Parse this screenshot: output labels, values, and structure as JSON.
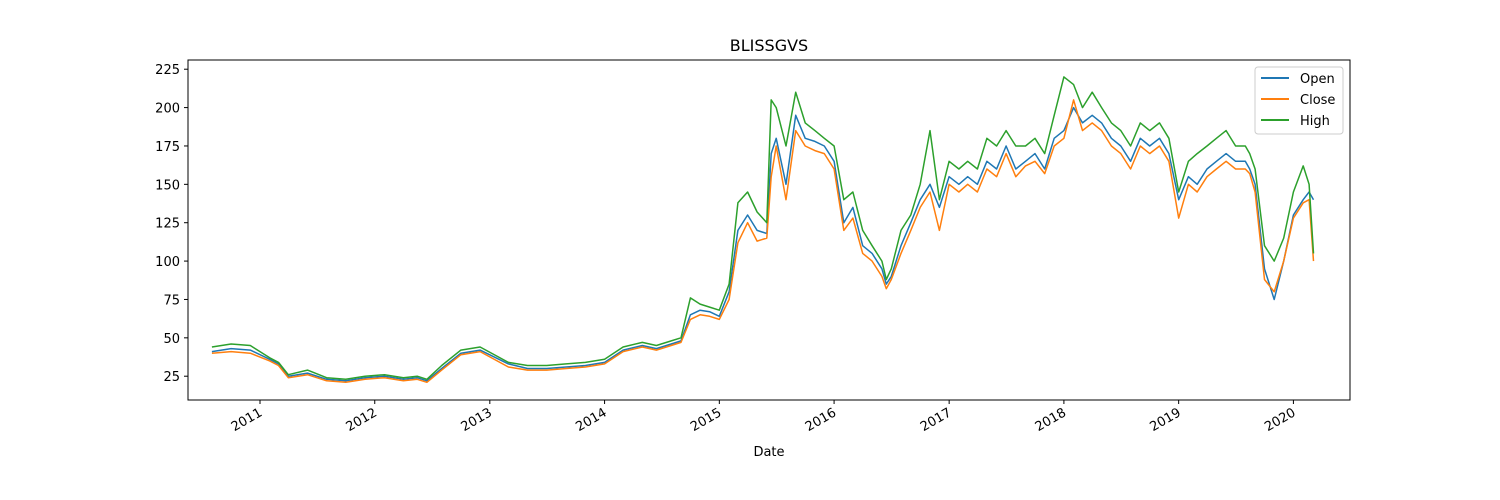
{
  "chart_data": {
    "type": "line",
    "title": "BLISSGVS",
    "xlabel": "Date",
    "ylabel": "",
    "x_ticks": [
      "2011",
      "2012",
      "2013",
      "2014",
      "2015",
      "2016",
      "2017",
      "2018",
      "2019",
      "2020"
    ],
    "y_ticks": [
      25,
      50,
      75,
      100,
      125,
      150,
      175,
      200,
      225
    ],
    "xlim": [
      "2010-05-17",
      "2020-06-29"
    ],
    "ylim": [
      9.5,
      231
    ],
    "legend_position": "top-right",
    "series": [
      {
        "name": "Open",
        "color": "#1f77b4"
      },
      {
        "name": "Close",
        "color": "#ff7f0e"
      },
      {
        "name": "High",
        "color": "#2ca02c"
      }
    ],
    "x": [
      "2010-08-01",
      "2010-10-01",
      "2010-12-01",
      "2011-02-01",
      "2011-03-01",
      "2011-04-01",
      "2011-06-01",
      "2011-08-01",
      "2011-10-01",
      "2011-12-01",
      "2012-02-01",
      "2012-04-01",
      "2012-05-15",
      "2012-06-15",
      "2012-08-01",
      "2012-10-01",
      "2012-12-01",
      "2013-03-01",
      "2013-05-01",
      "2013-07-01",
      "2013-09-01",
      "2013-11-01",
      "2014-01-01",
      "2014-03-01",
      "2014-05-01",
      "2014-06-15",
      "2014-08-01",
      "2014-09-01",
      "2014-10-01",
      "2014-11-01",
      "2014-12-01",
      "2015-01-01",
      "2015-02-01",
      "2015-03-01",
      "2015-04-01",
      "2015-05-01",
      "2015-06-01",
      "2015-06-15",
      "2015-07-01",
      "2015-08-01",
      "2015-09-01",
      "2015-10-01",
      "2015-11-01",
      "2015-12-01",
      "2016-01-01",
      "2016-02-01",
      "2016-03-01",
      "2016-04-01",
      "2016-05-01",
      "2016-06-01",
      "2016-06-15",
      "2016-07-01",
      "2016-08-01",
      "2016-09-01",
      "2016-10-01",
      "2016-11-01",
      "2016-12-01",
      "2017-01-01",
      "2017-02-01",
      "2017-03-01",
      "2017-04-01",
      "2017-05-01",
      "2017-06-01",
      "2017-07-01",
      "2017-08-01",
      "2017-09-01",
      "2017-10-01",
      "2017-11-01",
      "2017-12-01",
      "2018-01-01",
      "2018-02-01",
      "2018-03-01",
      "2018-04-01",
      "2018-05-01",
      "2018-06-01",
      "2018-07-01",
      "2018-08-01",
      "2018-09-01",
      "2018-10-01",
      "2018-11-01",
      "2018-12-01",
      "2019-01-01",
      "2019-02-01",
      "2019-03-01",
      "2019-04-01",
      "2019-05-01",
      "2019-06-01",
      "2019-07-01",
      "2019-08-01",
      "2019-08-15",
      "2019-09-01",
      "2019-10-01",
      "2019-11-01",
      "2019-12-01",
      "2020-01-01",
      "2020-02-01",
      "2020-02-20",
      "2020-03-05"
    ],
    "open": [
      41,
      43,
      42,
      36,
      33,
      25,
      27,
      23,
      22,
      24,
      25,
      23,
      24,
      22,
      30,
      40,
      42,
      33,
      30,
      30,
      31,
      32,
      34,
      42,
      45,
      43,
      46,
      48,
      65,
      68,
      67,
      64,
      80,
      120,
      130,
      120,
      118,
      170,
      180,
      150,
      195,
      180,
      178,
      175,
      165,
      125,
      135,
      110,
      105,
      95,
      85,
      90,
      110,
      125,
      140,
      150,
      135,
      155,
      150,
      155,
      150,
      165,
      160,
      175,
      160,
      165,
      170,
      160,
      180,
      185,
      200,
      190,
      195,
      190,
      180,
      175,
      165,
      180,
      175,
      180,
      170,
      140,
      155,
      150,
      160,
      165,
      170,
      165,
      165,
      160,
      150,
      95,
      75,
      100,
      130,
      140,
      145,
      140
    ],
    "close": [
      40,
      41,
      40,
      35,
      32,
      24,
      26,
      22,
      21,
      23,
      24,
      22,
      23,
      21,
      29,
      39,
      41,
      31,
      29,
      29,
      30,
      31,
      33,
      41,
      44,
      42,
      45,
      47,
      62,
      65,
      64,
      62,
      75,
      112,
      125,
      113,
      115,
      155,
      175,
      140,
      185,
      175,
      172,
      170,
      160,
      120,
      128,
      105,
      100,
      90,
      82,
      88,
      105,
      120,
      135,
      145,
      120,
      150,
      145,
      150,
      145,
      160,
      155,
      170,
      155,
      162,
      165,
      157,
      175,
      180,
      205,
      185,
      190,
      185,
      175,
      170,
      160,
      175,
      170,
      175,
      165,
      128,
      150,
      145,
      155,
      160,
      165,
      160,
      160,
      157,
      145,
      88,
      80,
      100,
      128,
      138,
      140,
      100
    ],
    "high": [
      44,
      46,
      45,
      37,
      34,
      26,
      29,
      24,
      23,
      25,
      26,
      24,
      25,
      23,
      32,
      42,
      44,
      34,
      32,
      32,
      33,
      34,
      36,
      44,
      47,
      45,
      48,
      50,
      76,
      72,
      70,
      68,
      85,
      138,
      145,
      132,
      125,
      205,
      200,
      175,
      210,
      190,
      185,
      180,
      175,
      140,
      145,
      120,
      110,
      100,
      88,
      95,
      120,
      130,
      150,
      185,
      140,
      165,
      160,
      165,
      160,
      180,
      175,
      185,
      175,
      175,
      180,
      170,
      195,
      220,
      215,
      200,
      210,
      200,
      190,
      185,
      175,
      190,
      185,
      190,
      180,
      145,
      165,
      170,
      175,
      180,
      185,
      175,
      175,
      170,
      160,
      110,
      100,
      115,
      145,
      162,
      150,
      105
    ]
  }
}
